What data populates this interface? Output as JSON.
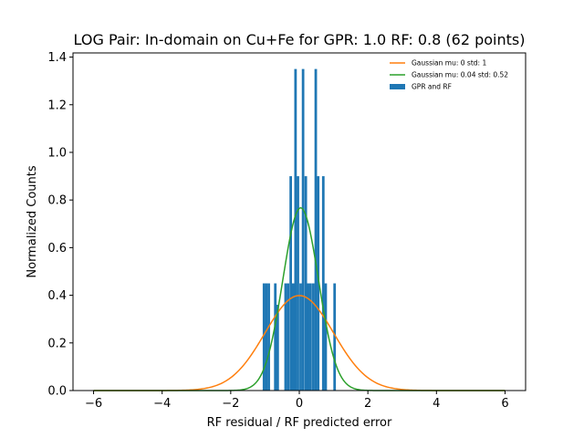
{
  "chart_data": {
    "type": "histogram",
    "title": "LOG Pair: In-domain on Cu+Fe for GPR: 1.0 RF: 0.8 (62 points)",
    "xlabel": "RF residual / RF predicted error",
    "ylabel": "Normalized Counts",
    "xlim": [
      -6.6,
      6.6
    ],
    "ylim": [
      0,
      1.4175
    ],
    "xticks": [
      -6,
      -4,
      -2,
      0,
      2,
      4,
      6
    ],
    "xtick_labels": [
      "−6",
      "−4",
      "−2",
      "0",
      "2",
      "4",
      "6"
    ],
    "yticks": [
      0.0,
      0.2,
      0.4,
      0.6,
      0.8,
      1.0,
      1.2,
      1.4
    ],
    "ytick_labels": [
      "0.0",
      "0.2",
      "0.4",
      "0.6",
      "0.8",
      "1.0",
      "1.2",
      "1.4"
    ],
    "grid": false,
    "legend_position": "top-right",
    "bar_series": {
      "name": "GPR and RF",
      "color": "#1f77b4",
      "bin_width": 0.074,
      "bars": [
        {
          "x": -1.03,
          "h": 0.45
        },
        {
          "x": -0.96,
          "h": 0.45
        },
        {
          "x": -0.89,
          "h": 0.45
        },
        {
          "x": -0.7,
          "h": 0.45
        },
        {
          "x": -0.63,
          "h": 0.36
        },
        {
          "x": -0.4,
          "h": 0.45
        },
        {
          "x": -0.33,
          "h": 0.45
        },
        {
          "x": -0.25,
          "h": 0.9
        },
        {
          "x": -0.18,
          "h": 0.45
        },
        {
          "x": -0.11,
          "h": 1.35
        },
        {
          "x": -0.04,
          "h": 0.9
        },
        {
          "x": 0.04,
          "h": 0.45
        },
        {
          "x": 0.11,
          "h": 1.35
        },
        {
          "x": 0.19,
          "h": 0.9
        },
        {
          "x": 0.26,
          "h": 0.45
        },
        {
          "x": 0.33,
          "h": 0.45
        },
        {
          "x": 0.41,
          "h": 0.45
        },
        {
          "x": 0.48,
          "h": 1.35
        },
        {
          "x": 0.55,
          "h": 0.9
        },
        {
          "x": 0.7,
          "h": 0.9
        },
        {
          "x": 0.77,
          "h": 0.45
        },
        {
          "x": 1.03,
          "h": 0.45
        }
      ]
    },
    "line_series": [
      {
        "name": "Gaussian mu: 0 std: 1",
        "mu": 0,
        "std": 1,
        "color": "#ff7f0e"
      },
      {
        "name": "Gaussian mu: 0.04 std: 0.52",
        "mu": 0.04,
        "std": 0.52,
        "color": "#2ca02c"
      }
    ],
    "line_x_range": [
      -6,
      6
    ]
  }
}
